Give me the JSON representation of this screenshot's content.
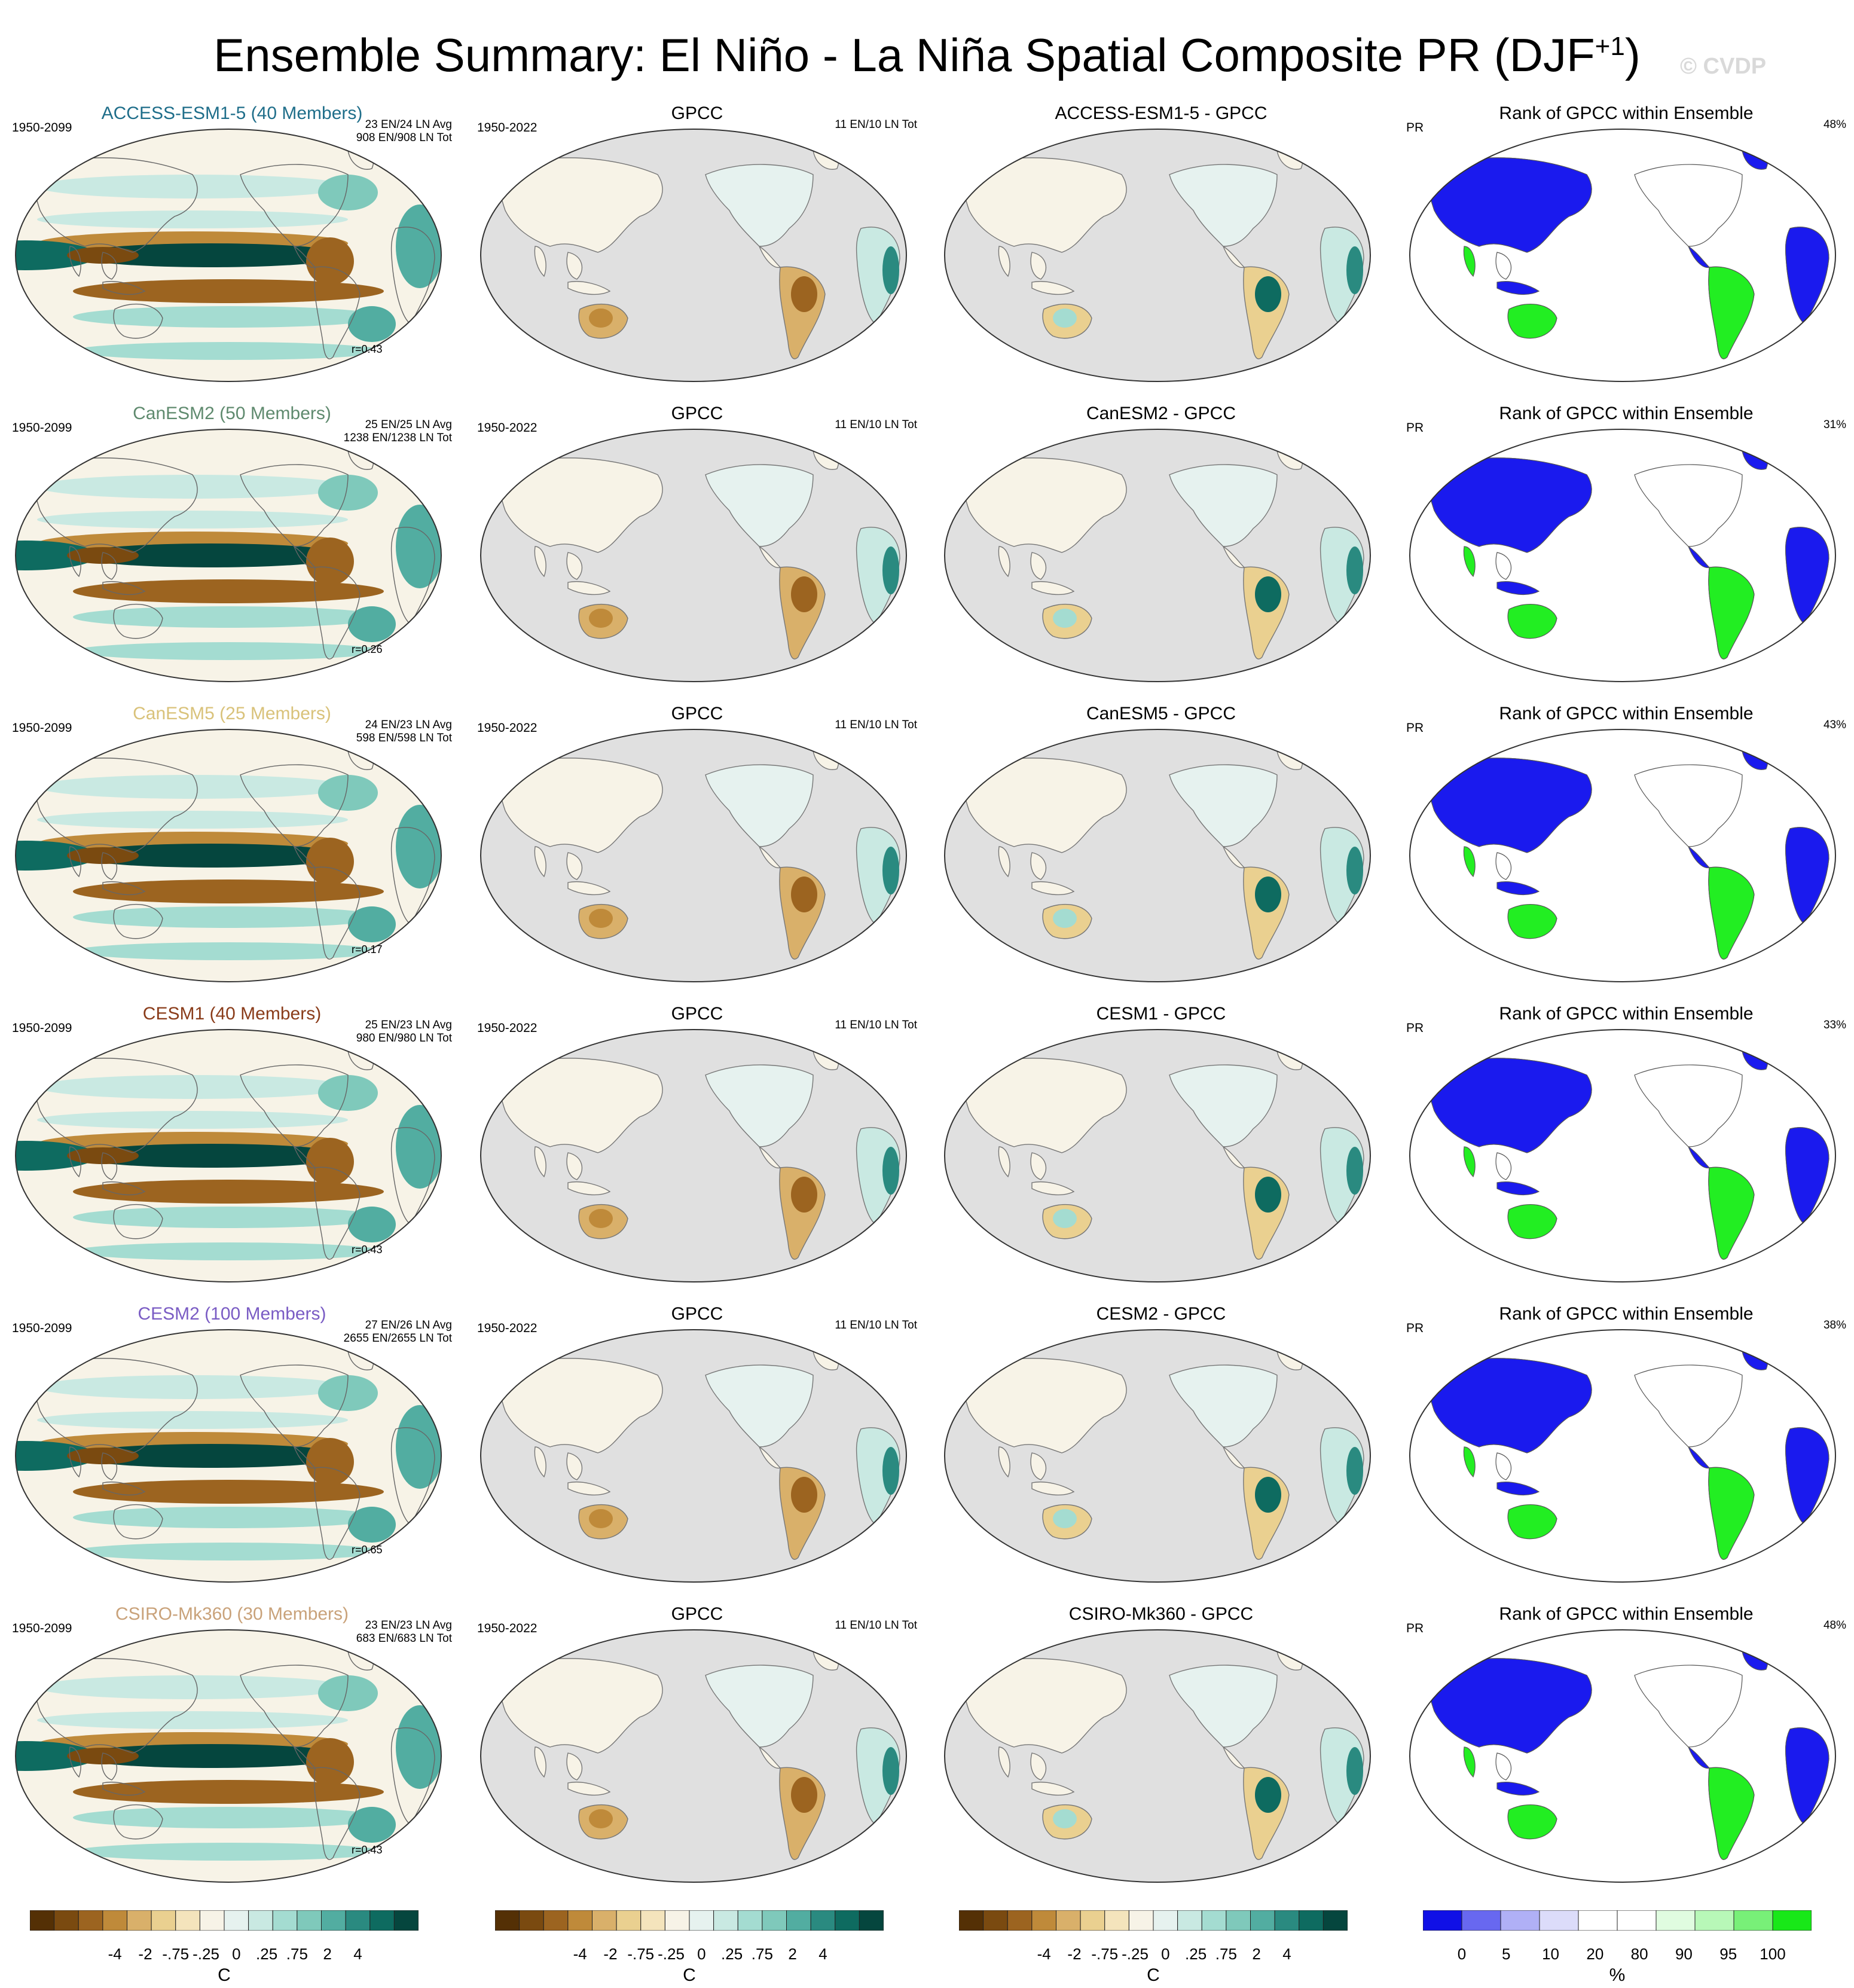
{
  "title_main": "Ensemble Summary: El Niño - La Niña Spatial Composite PR (DJF",
  "title_sup": "+1",
  "title_end": ")",
  "watermark": "© CVDP",
  "rows": [
    {
      "model": "ACCESS-ESM1-5 (40 Members)",
      "model_color": "#1f6e8a",
      "period": "1950-2099",
      "avg": "23 EN/24 LN Avg",
      "tot": "908 EN/908 LN Tot",
      "r": "r=0.43",
      "obs_title": "GPCC",
      "obs_period": "1950-2022",
      "obs_tot": "11 EN/10 LN Tot",
      "diff_title": "ACCESS-ESM1-5 - GPCC",
      "rank_title": "Rank of GPCC within Ensemble",
      "rank_var": "PR",
      "rank_pct": "48%"
    },
    {
      "model": "CanESM2 (50 Members)",
      "model_color": "#5f8a6e",
      "period": "1950-2099",
      "avg": "25 EN/25 LN Avg",
      "tot": "1238 EN/1238 LN Tot",
      "r": "r=0.26",
      "obs_title": "GPCC",
      "obs_period": "1950-2022",
      "obs_tot": "11 EN/10 LN Tot",
      "diff_title": "CanESM2 - GPCC",
      "rank_title": "Rank of GPCC within Ensemble",
      "rank_var": "PR",
      "rank_pct": "31%"
    },
    {
      "model": "CanESM5 (25 Members)",
      "model_color": "#d9c27a",
      "period": "1950-2099",
      "avg": "24 EN/23 LN Avg",
      "tot": "598 EN/598 LN Tot",
      "r": "r=0.17",
      "obs_title": "GPCC",
      "obs_period": "1950-2022",
      "obs_tot": "11 EN/10 LN Tot",
      "diff_title": "CanESM5 - GPCC",
      "rank_title": "Rank of GPCC within Ensemble",
      "rank_var": "PR",
      "rank_pct": "43%"
    },
    {
      "model": "CESM1 (40 Members)",
      "model_color": "#8a3c1a",
      "period": "1950-2099",
      "avg": "25 EN/23 LN Avg",
      "tot": "980 EN/980 LN Tot",
      "r": "r=0.43",
      "obs_title": "GPCC",
      "obs_period": "1950-2022",
      "obs_tot": "11 EN/10 LN Tot",
      "diff_title": "CESM1 - GPCC",
      "rank_title": "Rank of GPCC within Ensemble",
      "rank_var": "PR",
      "rank_pct": "33%"
    },
    {
      "model": "CESM2 (100 Members)",
      "model_color": "#7a5cc4",
      "period": "1950-2099",
      "avg": "27 EN/26 LN Avg",
      "tot": "2655 EN/2655 LN Tot",
      "r": "r=0.65",
      "obs_title": "GPCC",
      "obs_period": "1950-2022",
      "obs_tot": "11 EN/10 LN Tot",
      "diff_title": "CESM2 - GPCC",
      "rank_title": "Rank of GPCC within Ensemble",
      "rank_var": "PR",
      "rank_pct": "38%"
    },
    {
      "model": "CSIRO-Mk360 (30 Members)",
      "model_color": "#c9a27a",
      "period": "1950-2099",
      "avg": "23 EN/23 LN Avg",
      "tot": "683 EN/683 LN Tot",
      "r": "r=0.43",
      "obs_title": "GPCC",
      "obs_period": "1950-2022",
      "obs_tot": "11 EN/10 LN Tot",
      "diff_title": "CSIRO-Mk360 - GPCC",
      "rank_title": "Rank of GPCC within Ensemble",
      "rank_var": "PR",
      "rank_pct": "48%"
    }
  ],
  "colorbar_pr": {
    "labels": [
      "-4",
      "-2",
      "-.75",
      "-.25",
      "0",
      ".25",
      ".75",
      "2",
      "4"
    ],
    "unit": "C",
    "colors": [
      "#543005",
      "#7a4a10",
      "#9c6420",
      "#bf8a3a",
      "#d9b06a",
      "#ead090",
      "#f4e4bc",
      "#f7f3e7",
      "#e6f2ef",
      "#c9e9e2",
      "#a4dcd1",
      "#7fc9bb",
      "#52ada1",
      "#2a8a80",
      "#0e6b60",
      "#05463e"
    ]
  },
  "colorbar_rank": {
    "labels": [
      "0",
      "5",
      "10",
      "20",
      "80",
      "90",
      "95",
      "100"
    ],
    "unit": "%",
    "colors": [
      "#1010e6",
      "#6868f0",
      "#b0b0f6",
      "#dcdcfa",
      "#ffffff",
      "#ffffff",
      "#e0fce0",
      "#b8f8b8",
      "#78f078",
      "#18e818"
    ]
  },
  "colors": {
    "land_gray": "#e0e0e0",
    "ocean_white": "#ffffff",
    "rank_blue": "#1a1aee",
    "rank_green": "#22ee22"
  }
}
